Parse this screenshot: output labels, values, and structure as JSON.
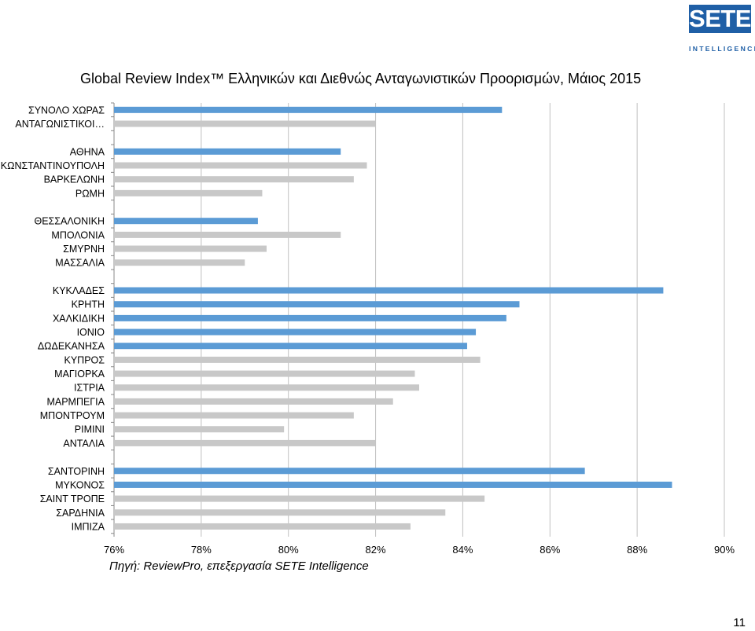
{
  "title": "Global Review Index™ Ελληνικών και Διεθνώς Ανταγωνιστικών Προορισμών, Μάιος 2015",
  "logo": {
    "text": "SETE",
    "subtext": "INTELLIGENCE"
  },
  "source_note": "Πηγή: ReviewPro, επεξεργασία SETE Intelligence",
  "page_number": "11",
  "colors": {
    "highlight": "#5b9bd5",
    "other": "#c8c8c8",
    "grid": "#c0c0c0",
    "logo": "#1f5fa6"
  },
  "chart_data": {
    "type": "bar",
    "orientation": "horizontal",
    "xlim": [
      76,
      90
    ],
    "xticks": [
      "76%",
      "78%",
      "80%",
      "82%",
      "84%",
      "86%",
      "88%",
      "90%"
    ],
    "grid": true,
    "groups": [
      {
        "items": [
          {
            "label": "ΣΥΝΟΛΟ ΧΩΡΑΣ",
            "value": 84.9,
            "highlight": true
          },
          {
            "label": "ΑΝΤΑΓΩΝΙΣΤΙΚΟΙ…",
            "value": 82.0,
            "highlight": false
          }
        ]
      },
      {
        "items": [
          {
            "label": "ΑΘΗΝΑ",
            "value": 81.2,
            "highlight": true
          },
          {
            "label": "ΚΩΝΣΤΑΝΤΙΝΟΥΠΟΛΗ",
            "value": 81.8,
            "highlight": false
          },
          {
            "label": "ΒΑΡΚΕΛΩΝΗ",
            "value": 81.5,
            "highlight": false
          },
          {
            "label": "ΡΩΜΗ",
            "value": 79.4,
            "highlight": false
          }
        ]
      },
      {
        "items": [
          {
            "label": "ΘΕΣΣΑΛΟΝΙΚΗ",
            "value": 79.3,
            "highlight": true
          },
          {
            "label": "ΜΠΟΛΟΝΙΑ",
            "value": 81.2,
            "highlight": false
          },
          {
            "label": "ΣΜΥΡΝΗ",
            "value": 79.5,
            "highlight": false
          },
          {
            "label": "ΜΑΣΣΑΛΙΑ",
            "value": 79.0,
            "highlight": false
          }
        ]
      },
      {
        "items": [
          {
            "label": "ΚΥΚΛΑΔΕΣ",
            "value": 88.6,
            "highlight": true
          },
          {
            "label": "ΚΡΗΤΗ",
            "value": 85.3,
            "highlight": true
          },
          {
            "label": "ΧΑΛΚΙΔΙΚΗ",
            "value": 85.0,
            "highlight": true
          },
          {
            "label": "ΙΟΝΙΟ",
            "value": 84.3,
            "highlight": true
          },
          {
            "label": "ΔΩΔΕΚΑΝΗΣΑ",
            "value": 84.1,
            "highlight": true
          },
          {
            "label": "ΚΥΠΡΟΣ",
            "value": 84.4,
            "highlight": false
          },
          {
            "label": "ΜΑΓΙΟΡΚΑ",
            "value": 82.9,
            "highlight": false
          },
          {
            "label": "ΙΣΤΡΙΑ",
            "value": 83.0,
            "highlight": false
          },
          {
            "label": "ΜΑΡΜΠΕΓΙΑ",
            "value": 82.4,
            "highlight": false
          },
          {
            "label": "ΜΠΟΝΤΡΟΥΜ",
            "value": 81.5,
            "highlight": false
          },
          {
            "label": "ΡΙΜΙΝΙ",
            "value": 79.9,
            "highlight": false
          },
          {
            "label": "ΑΝΤΑΛΙΑ",
            "value": 82.0,
            "highlight": false
          }
        ]
      },
      {
        "items": [
          {
            "label": "ΣΑΝΤΟΡΙΝΗ",
            "value": 86.8,
            "highlight": true
          },
          {
            "label": "ΜΥΚΟΝΟΣ",
            "value": 88.8,
            "highlight": true
          },
          {
            "label": "ΣΑΙΝΤ ΤΡΟΠΕ",
            "value": 84.5,
            "highlight": false
          },
          {
            "label": "ΣΑΡΔΗΝΙΑ",
            "value": 83.6,
            "highlight": false
          },
          {
            "label": "ΙΜΠΙΖΑ",
            "value": 82.8,
            "highlight": false
          }
        ]
      }
    ]
  }
}
